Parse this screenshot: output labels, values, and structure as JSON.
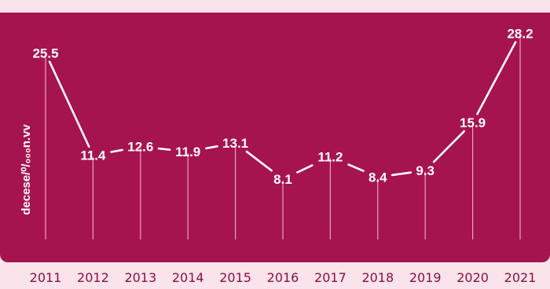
{
  "colors": {
    "panel": "#a6144f",
    "line": "#ffffff",
    "drop_line": "#f4c9d8",
    "axis_text": "#8a1040",
    "background": "#fbe3ec"
  },
  "chart_data": {
    "type": "line",
    "title": "",
    "xlabel": "",
    "ylabel": "decese/⁰/₀₀₀n.vv",
    "categories": [
      "2011",
      "2012",
      "2013",
      "2014",
      "2015",
      "2016",
      "2017",
      "2018",
      "2019",
      "2020",
      "2021"
    ],
    "series": [
      {
        "values": [
          25.5,
          11.4,
          12.6,
          11.9,
          13.1,
          8.1,
          11.2,
          8.4,
          9.3,
          15.9,
          28.2
        ],
        "labels": [
          "25.5",
          "11.4",
          "12.6",
          "11.9",
          "13.1",
          "8.1",
          "11.2",
          "8.4",
          "9.3",
          "15.9",
          "28.2"
        ]
      }
    ],
    "ylim": [
      0,
      30
    ],
    "grid": false,
    "legend": "none"
  }
}
